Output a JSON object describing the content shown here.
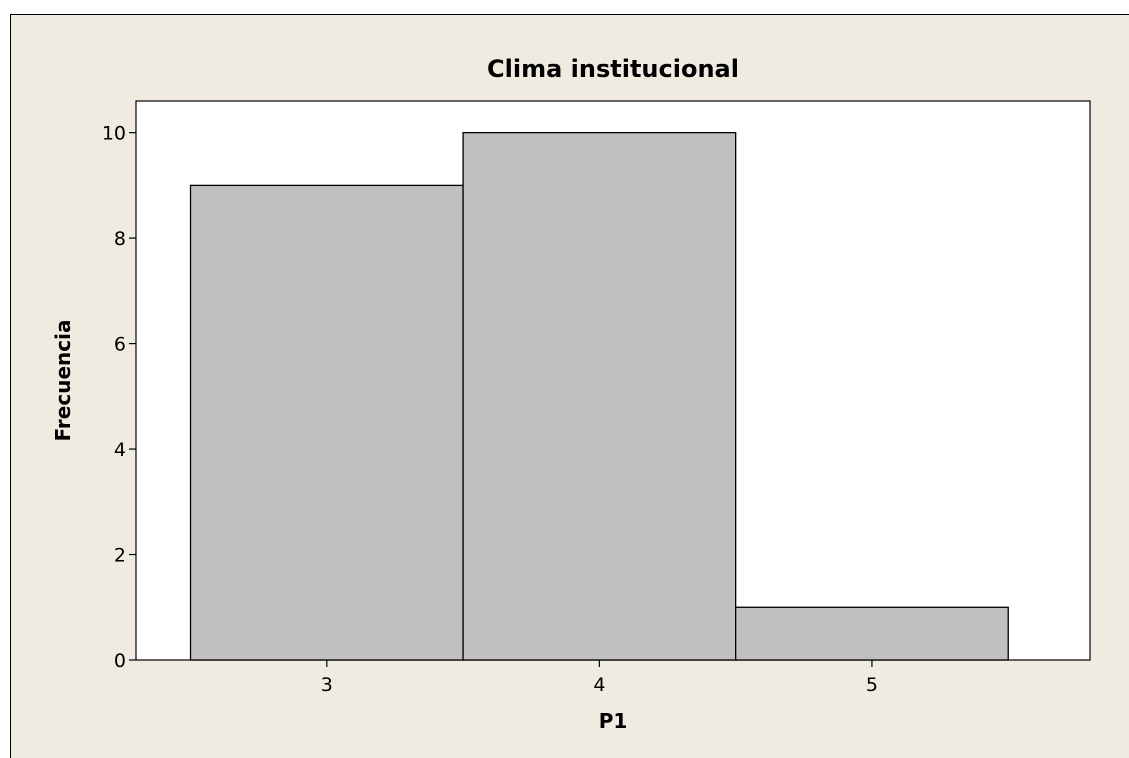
{
  "chart_data": {
    "type": "bar",
    "title": "Clima institucional",
    "xlabel": "P1",
    "ylabel": "Frecuencia",
    "categories": [
      "3",
      "4",
      "5"
    ],
    "values": [
      9,
      10,
      1
    ],
    "ylim": [
      0,
      10.6
    ],
    "xlim": [
      2.3,
      5.8
    ],
    "yticks": [
      "0",
      "2",
      "4",
      "6",
      "8",
      "10"
    ],
    "grid": false,
    "colors": {
      "bar_fill": "#c0c0c0",
      "bar_stroke": "#000000",
      "plot_background": "#ffffff",
      "panel_background": "#f0ebe0"
    }
  }
}
